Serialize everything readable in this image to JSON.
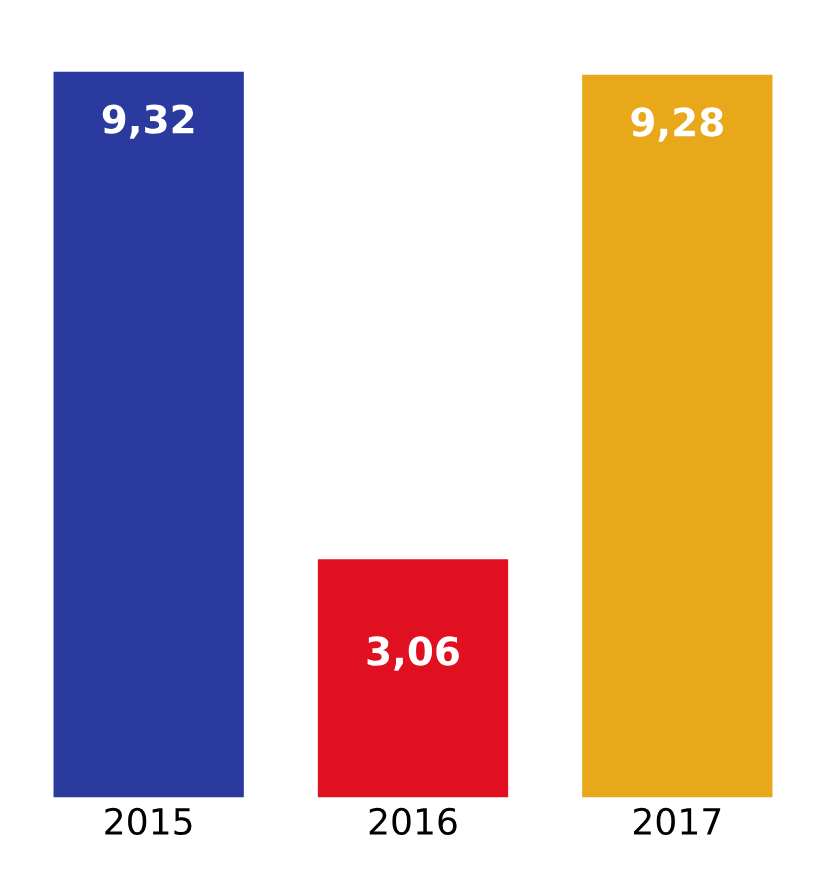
{
  "chart_data": {
    "type": "bar",
    "categories": [
      "2015",
      "2016",
      "2017"
    ],
    "values": [
      9.32,
      3.06,
      9.28
    ],
    "colors": [
      "#2b3a9e",
      "#e01020",
      "#e8a81a"
    ],
    "value_labels": [
      "9,32",
      "3,06",
      "9,28"
    ],
    "grid": false
  }
}
